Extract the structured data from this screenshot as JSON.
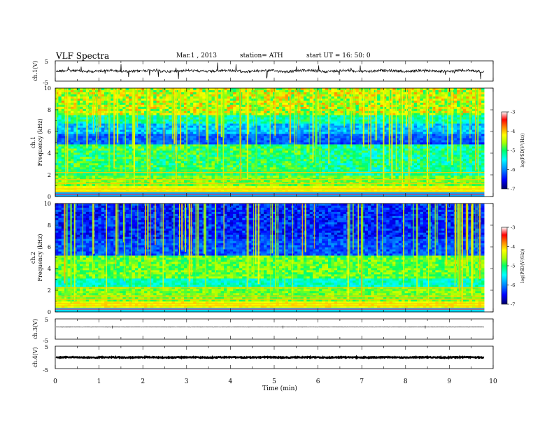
{
  "header": {
    "title": "VLF  Spectra",
    "date": "Mar.1  , 2013",
    "station": "station= ATH",
    "start": "start  UT  =    16: 50: 0"
  },
  "chart_data": [
    {
      "type": "line",
      "panel": "ch1-waveform",
      "ylabel": "ch.1(V)",
      "yticks": [
        "5",
        "-5"
      ],
      "ylim": [
        -5,
        5
      ],
      "color": "#000000"
    },
    {
      "type": "heatmap",
      "panel": "ch1-spectrogram",
      "ylabel": "Frequency  (kHz)",
      "ylabel_channel": "ch.1",
      "ylim": [
        0,
        10
      ],
      "yticks": [
        "0",
        "2",
        "4",
        "6",
        "8",
        "10"
      ],
      "colorbar": {
        "label": "log(PSD(V²/Hz))",
        "ticks": [
          "-3",
          "-4",
          "-5",
          "-6",
          "-7"
        ],
        "range": [
          -7,
          -3
        ]
      }
    },
    {
      "type": "heatmap",
      "panel": "ch2-spectrogram",
      "ylabel": "Frequency  (kHz)",
      "ylabel_channel": "ch.2",
      "ylim": [
        0,
        10
      ],
      "yticks": [
        "0",
        "2",
        "4",
        "6",
        "8",
        "10"
      ],
      "colorbar": {
        "label": "log(PSD(V²/Hz))",
        "ticks": [
          "-3",
          "-4",
          "-5",
          "-6",
          "-7"
        ],
        "range": [
          -7,
          -3
        ]
      }
    },
    {
      "type": "line",
      "panel": "ch3-waveform",
      "ylabel": "ch.3(V)",
      "yticks": [
        "5",
        "-5"
      ],
      "ylim": [
        -5,
        5
      ],
      "color": "#000000"
    },
    {
      "type": "line",
      "panel": "ch4-waveform",
      "ylabel": "ch.4(V)",
      "yticks": [
        "5",
        "-5"
      ],
      "ylim": [
        -5,
        5
      ],
      "color": "#000000"
    }
  ],
  "xaxis": {
    "label": "Time  (min)",
    "range": [
      0,
      10
    ],
    "ticks": [
      "0",
      "1",
      "2",
      "3",
      "4",
      "5",
      "6",
      "7",
      "8",
      "9",
      "10"
    ],
    "data_end": 9.8
  },
  "colormap": [
    "#000066",
    "#0000ff",
    "#0088ff",
    "#00ffff",
    "#00ff66",
    "#aaff00",
    "#ffff00",
    "#ff8800",
    "#ff0000",
    "#ffffff"
  ]
}
